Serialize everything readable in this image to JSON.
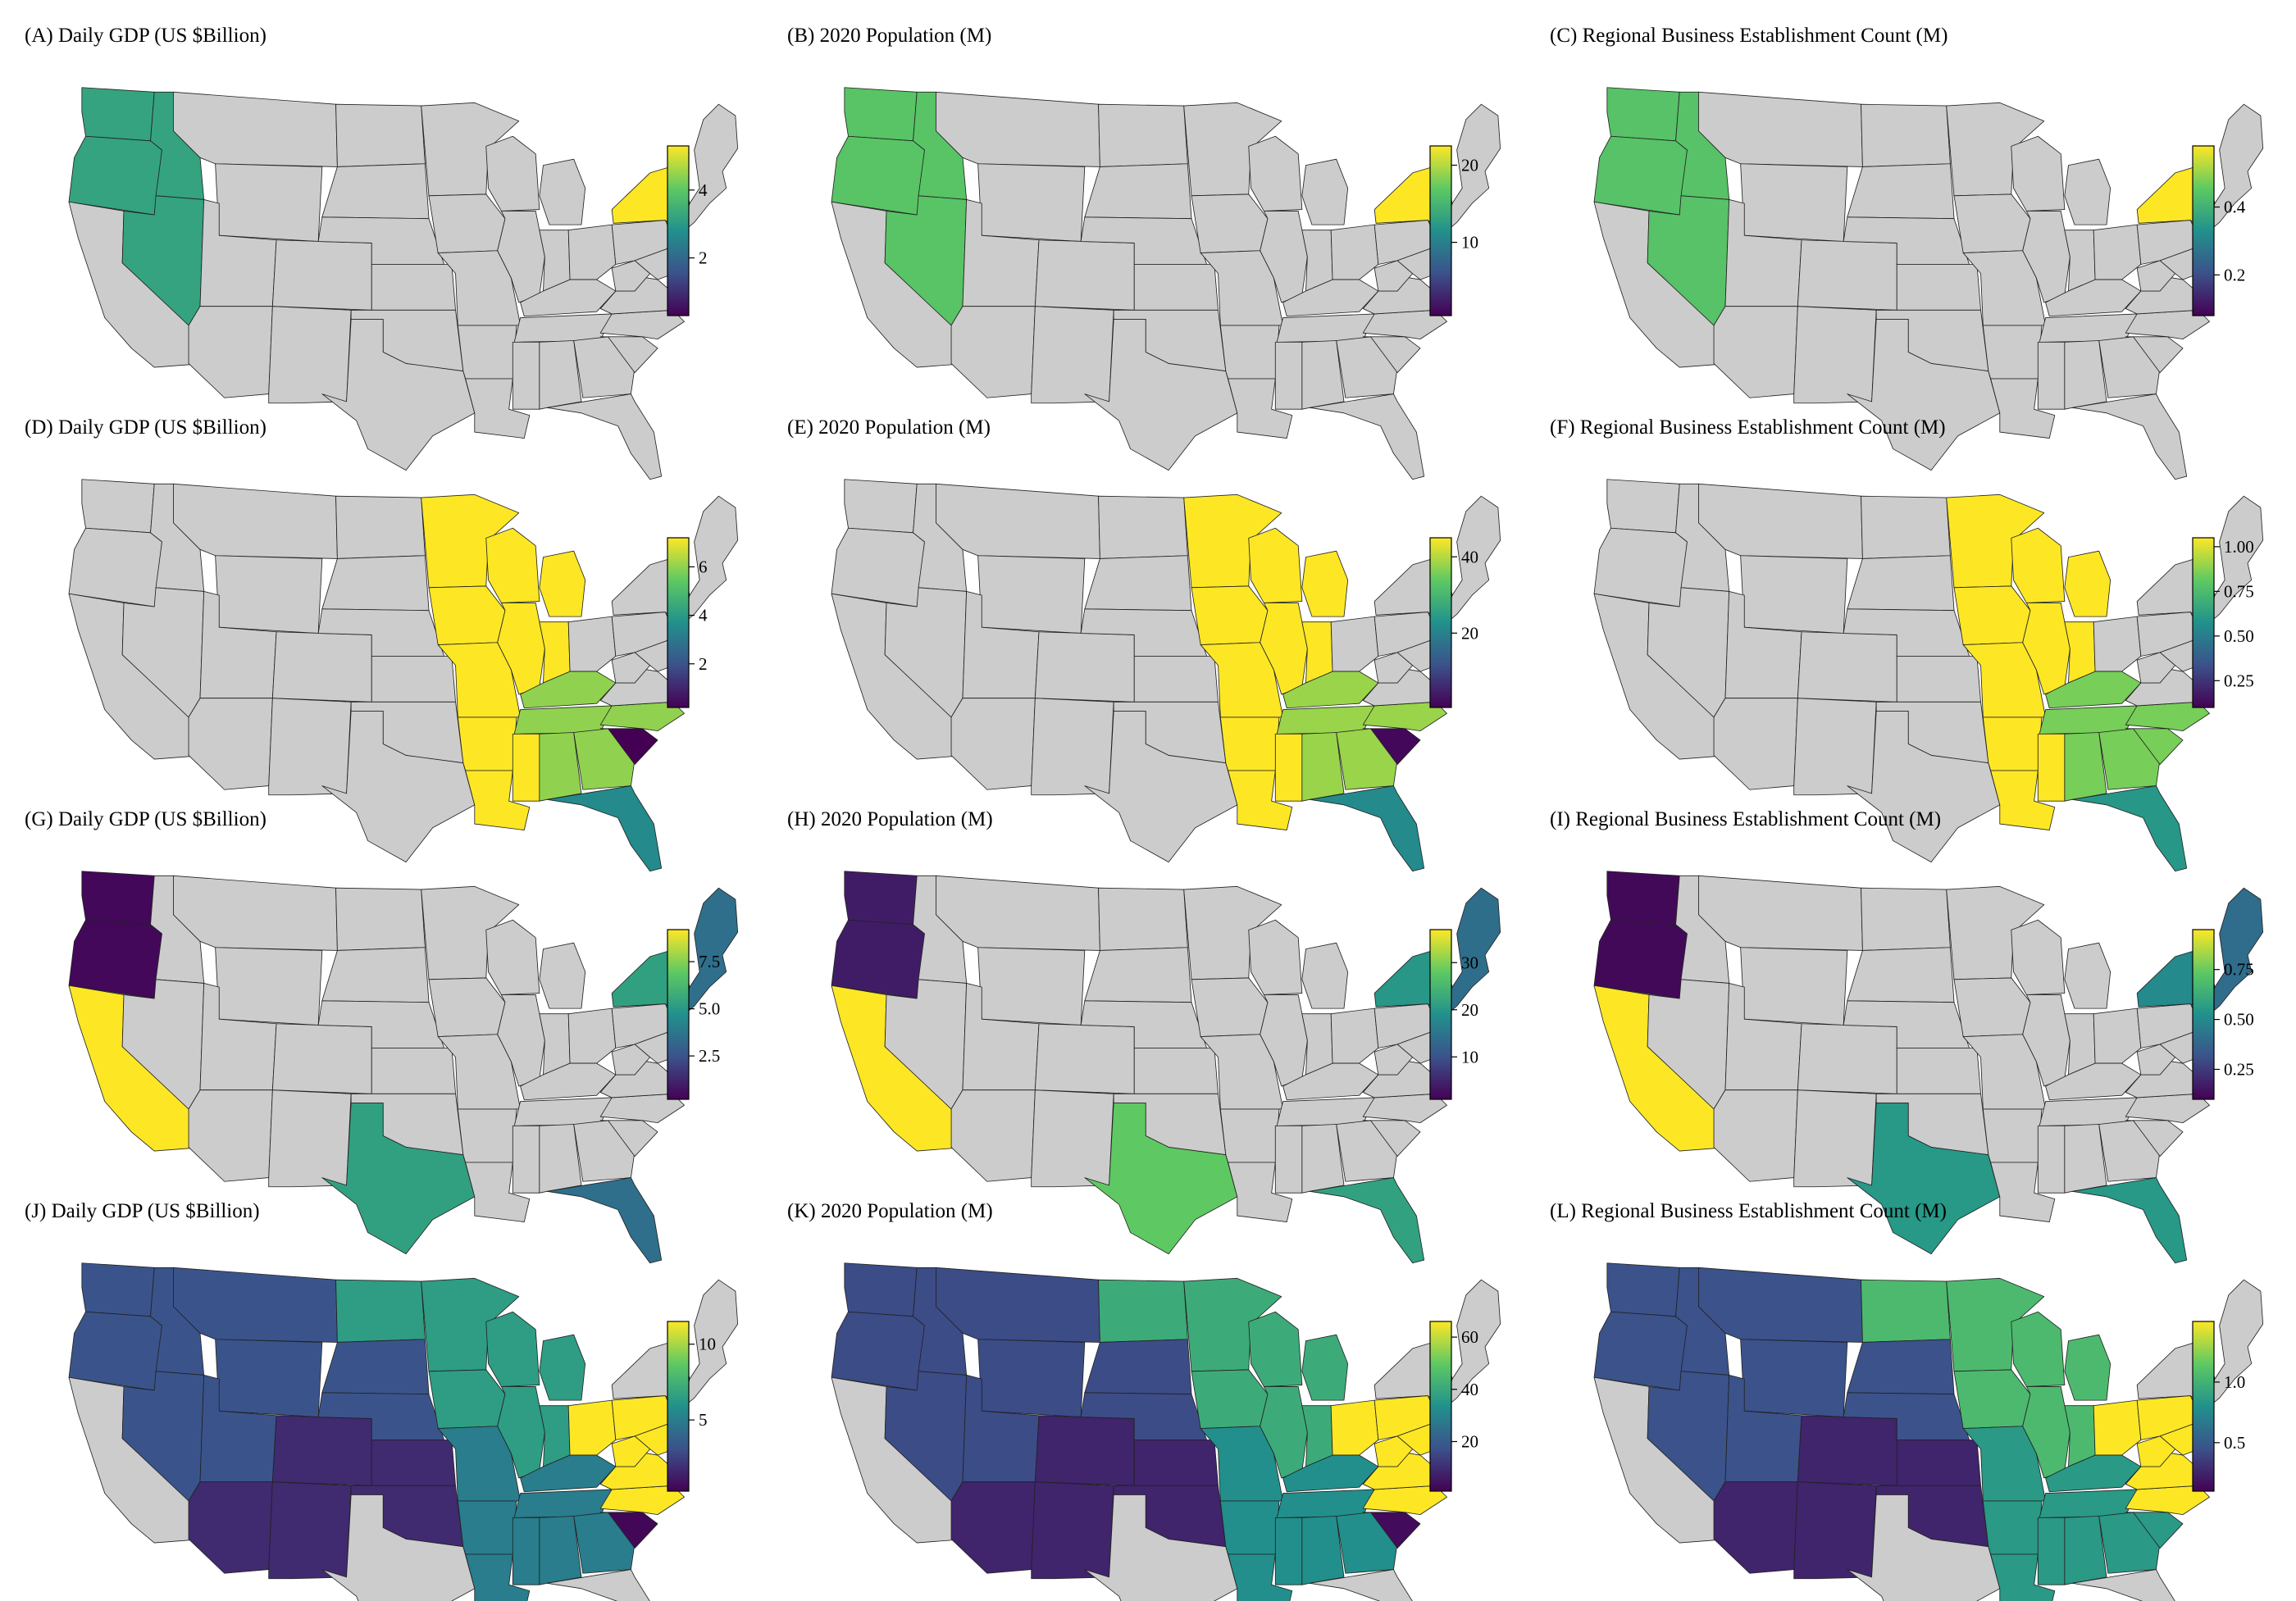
{
  "figure": {
    "colors": {
      "land_gray": "#cccccc",
      "state_border": "#222222",
      "viridis": [
        "#440154",
        "#3b528b",
        "#21918c",
        "#5ec962",
        "#fde725"
      ]
    },
    "panels": [
      {
        "label": "(A)",
        "title": "(A) Daily GDP (US $Billion)",
        "colorbar": {
          "min": 0.3,
          "max": 5.3,
          "ticks": [
            {
              "v": 2,
              "t": "2"
            },
            {
              "v": 4,
              "t": "4"
            }
          ]
        },
        "regions": [
          {
            "name": "northwest",
            "value": 3.2,
            "states": [
              "WA",
              "OR",
              "ID",
              "NV"
            ]
          },
          {
            "name": "new-york",
            "value": 5.3,
            "states": [
              "NY"
            ]
          }
        ]
      },
      {
        "label": "(B)",
        "title": "(B) 2020 Population (M)",
        "colorbar": {
          "min": 0.5,
          "max": 22.5,
          "ticks": [
            {
              "v": 10,
              "t": "10"
            },
            {
              "v": 20,
              "t": "20"
            }
          ]
        },
        "regions": [
          {
            "name": "northwest",
            "value": 16.5,
            "states": [
              "WA",
              "OR",
              "ID",
              "NV"
            ]
          },
          {
            "name": "new-york",
            "value": 22.5,
            "states": [
              "NY"
            ]
          }
        ]
      },
      {
        "label": "(C)",
        "title": "(C) Regional Business Establishment Count (M)",
        "colorbar": {
          "min": 0.08,
          "max": 0.58,
          "ticks": [
            {
              "v": 0.2,
              "t": "0.2"
            },
            {
              "v": 0.4,
              "t": "0.4"
            }
          ]
        },
        "regions": [
          {
            "name": "northwest",
            "value": 0.44,
            "states": [
              "WA",
              "OR",
              "ID",
              "NV"
            ]
          },
          {
            "name": "new-york",
            "value": 0.58,
            "states": [
              "NY"
            ]
          }
        ]
      },
      {
        "label": "(D)",
        "title": "(D) Daily GDP (US $Billion)",
        "colorbar": {
          "min": 0.2,
          "max": 7.2,
          "ticks": [
            {
              "v": 2,
              "t": "2"
            },
            {
              "v": 4,
              "t": "4"
            },
            {
              "v": 6,
              "t": "6"
            }
          ]
        },
        "regions": [
          {
            "name": "upper-midwest",
            "value": 7.2,
            "states": [
              "MN",
              "WI",
              "MI",
              "IA",
              "IL",
              "IN",
              "MO",
              "AR",
              "LA",
              "MS"
            ]
          },
          {
            "name": "southeast",
            "value": 6.0,
            "states": [
              "TN",
              "KY",
              "AL",
              "GA",
              "NC"
            ]
          },
          {
            "name": "south-carolina",
            "value": 0.2,
            "states": [
              "SC"
            ]
          },
          {
            "name": "florida",
            "value": 3.5,
            "states": [
              "FL"
            ]
          }
        ]
      },
      {
        "label": "(E)",
        "title": "(E) 2020 Population (M)",
        "colorbar": {
          "min": 0.5,
          "max": 45,
          "ticks": [
            {
              "v": 20,
              "t": "20"
            },
            {
              "v": 40,
              "t": "40"
            }
          ]
        },
        "regions": [
          {
            "name": "upper-midwest",
            "value": 45,
            "states": [
              "MN",
              "WI",
              "MI",
              "IA",
              "IL",
              "IN",
              "MO",
              "AR",
              "LA",
              "MS"
            ]
          },
          {
            "name": "southeast",
            "value": 38,
            "states": [
              "TN",
              "KY",
              "AL",
              "GA",
              "NC"
            ]
          },
          {
            "name": "south-carolina",
            "value": 1.5,
            "states": [
              "SC"
            ]
          },
          {
            "name": "florida",
            "value": 21.5,
            "states": [
              "FL"
            ]
          }
        ]
      },
      {
        "label": "(F)",
        "title": "(F) Regional Business Establishment Count (M)",
        "colorbar": {
          "min": 0.1,
          "max": 1.05,
          "ticks": [
            {
              "v": 0.25,
              "t": "0.25"
            },
            {
              "v": 0.5,
              "t": "0.50"
            },
            {
              "v": 0.75,
              "t": "0.75"
            },
            {
              "v": 1.0,
              "t": "1.00"
            }
          ]
        },
        "regions": [
          {
            "name": "upper-midwest",
            "value": 1.05,
            "states": [
              "MN",
              "WI",
              "MI",
              "IA",
              "IL",
              "IN",
              "MO",
              "AR",
              "LA",
              "MS"
            ]
          },
          {
            "name": "southeast",
            "value": 0.85,
            "states": [
              "TN",
              "KY",
              "AL",
              "GA",
              "NC",
              "SC"
            ]
          },
          {
            "name": "florida",
            "value": 0.6,
            "states": [
              "FL"
            ]
          }
        ]
      },
      {
        "label": "(G)",
        "title": "(G) Daily GDP (US $Billion)",
        "colorbar": {
          "min": 0.2,
          "max": 9.2,
          "ticks": [
            {
              "v": 2.5,
              "t": "2.5"
            },
            {
              "v": 5.0,
              "t": "5.0"
            },
            {
              "v": 7.5,
              "t": "7.5"
            }
          ]
        },
        "regions": [
          {
            "name": "pacific-northwest",
            "value": 0.4,
            "states": [
              "WA",
              "OR"
            ]
          },
          {
            "name": "california",
            "value": 9.2,
            "states": [
              "CA"
            ]
          },
          {
            "name": "texas",
            "value": 5.3,
            "states": [
              "TX"
            ]
          },
          {
            "name": "florida",
            "value": 3.5,
            "states": [
              "FL"
            ]
          },
          {
            "name": "new-york",
            "value": 5.3,
            "states": [
              "NY"
            ]
          },
          {
            "name": "new-england",
            "value": 3.5,
            "states": [
              "NE-ENG"
            ]
          }
        ]
      },
      {
        "label": "(H)",
        "title": "(H) 2020 Population (M)",
        "colorbar": {
          "min": 1,
          "max": 37,
          "ticks": [
            {
              "v": 10,
              "t": "10"
            },
            {
              "v": 20,
              "t": "20"
            },
            {
              "v": 30,
              "t": "30"
            }
          ]
        },
        "regions": [
          {
            "name": "pacific-northwest",
            "value": 4,
            "states": [
              "WA",
              "OR"
            ]
          },
          {
            "name": "california",
            "value": 37,
            "states": [
              "CA"
            ]
          },
          {
            "name": "texas",
            "value": 28,
            "states": [
              "TX"
            ]
          },
          {
            "name": "florida",
            "value": 21.5,
            "states": [
              "FL"
            ]
          },
          {
            "name": "new-york",
            "value": 20,
            "states": [
              "NY"
            ]
          },
          {
            "name": "new-england",
            "value": 14,
            "states": [
              "NE-ENG"
            ]
          }
        ]
      },
      {
        "label": "(I)",
        "title": "(I) Regional Business Establishment Count (M)",
        "colorbar": {
          "min": 0.1,
          "max": 0.95,
          "ticks": [
            {
              "v": 0.25,
              "t": "0.25"
            },
            {
              "v": 0.5,
              "t": "0.50"
            },
            {
              "v": 0.75,
              "t": "0.75"
            }
          ]
        },
        "regions": [
          {
            "name": "pacific-northwest",
            "value": 0.12,
            "states": [
              "WA",
              "OR"
            ]
          },
          {
            "name": "california",
            "value": 0.95,
            "states": [
              "CA"
            ]
          },
          {
            "name": "texas",
            "value": 0.55,
            "states": [
              "TX"
            ]
          },
          {
            "name": "florida",
            "value": 0.55,
            "states": [
              "FL"
            ]
          },
          {
            "name": "new-york",
            "value": 0.5,
            "states": [
              "NY"
            ]
          },
          {
            "name": "new-england",
            "value": 0.4,
            "states": [
              "NE-ENG"
            ]
          }
        ]
      },
      {
        "label": "(J)",
        "title": "(J) Daily GDP (US $Billion)",
        "colorbar": {
          "min": 0.3,
          "max": 11.5,
          "ticks": [
            {
              "v": 5,
              "t": "5"
            },
            {
              "v": 10,
              "t": "10"
            }
          ]
        },
        "regions": [
          {
            "name": "northwest",
            "value": 3.2,
            "states": [
              "WA",
              "OR",
              "ID",
              "MT",
              "WY",
              "NV",
              "UT",
              "SD",
              "NE"
            ]
          },
          {
            "name": "southwest",
            "value": 1.7,
            "states": [
              "AZ",
              "NM",
              "CO",
              "KS",
              "OK"
            ]
          },
          {
            "name": "north-central",
            "value": 6.5,
            "states": [
              "ND",
              "MN",
              "WI",
              "MI",
              "IA",
              "IL",
              "IN"
            ]
          },
          {
            "name": "south-central",
            "value": 5.0,
            "states": [
              "MO",
              "AR",
              "LA",
              "MS",
              "TN",
              "KY",
              "AL",
              "GA"
            ]
          },
          {
            "name": "south-carolina",
            "value": 0.5,
            "states": [
              "SC"
            ]
          },
          {
            "name": "east-central",
            "value": 11.5,
            "states": [
              "OH",
              "PA",
              "WV",
              "VA",
              "NC",
              "MD"
            ]
          }
        ]
      },
      {
        "label": "(K)",
        "title": "(K) 2020 Population (M)",
        "colorbar": {
          "min": 1,
          "max": 66,
          "ticks": [
            {
              "v": 20,
              "t": "20"
            },
            {
              "v": 40,
              "t": "40"
            },
            {
              "v": 60,
              "t": "60"
            }
          ]
        },
        "regions": [
          {
            "name": "northwest",
            "value": 16,
            "states": [
              "WA",
              "OR",
              "ID",
              "MT",
              "WY",
              "NV",
              "UT",
              "SD",
              "NE"
            ]
          },
          {
            "name": "southwest",
            "value": 8,
            "states": [
              "AZ",
              "NM",
              "CO",
              "KS",
              "OK"
            ]
          },
          {
            "name": "north-central",
            "value": 41,
            "states": [
              "ND",
              "MN",
              "WI",
              "MI",
              "IA",
              "IL",
              "IN"
            ]
          },
          {
            "name": "south-central",
            "value": 33,
            "states": [
              "MO",
              "AR",
              "LA",
              "MS",
              "TN",
              "KY",
              "AL",
              "GA"
            ]
          },
          {
            "name": "south-carolina",
            "value": 3,
            "states": [
              "SC"
            ]
          },
          {
            "name": "east-central",
            "value": 66,
            "states": [
              "OH",
              "PA",
              "WV",
              "VA",
              "NC",
              "MD"
            ]
          }
        ]
      },
      {
        "label": "(L)",
        "title": "(L) Regional Business Establishment Count (M)",
        "colorbar": {
          "min": 0.1,
          "max": 1.5,
          "ticks": [
            {
              "v": 0.5,
              "t": "0.5"
            },
            {
              "v": 1.0,
              "t": "1.0"
            }
          ]
        },
        "regions": [
          {
            "name": "northwest",
            "value": 0.45,
            "states": [
              "WA",
              "OR",
              "ID",
              "MT",
              "WY",
              "NV",
              "UT",
              "SD",
              "NE"
            ]
          },
          {
            "name": "southwest",
            "value": 0.25,
            "states": [
              "AZ",
              "NM",
              "CO",
              "KS",
              "OK"
            ]
          },
          {
            "name": "north-central",
            "value": 1.05,
            "states": [
              "ND",
              "MN",
              "WI",
              "MI",
              "IA",
              "IL",
              "IN"
            ]
          },
          {
            "name": "south-central",
            "value": 0.85,
            "states": [
              "MO",
              "AR",
              "LA",
              "MS",
              "TN",
              "KY",
              "AL",
              "GA",
              "SC"
            ]
          },
          {
            "name": "east-central",
            "value": 1.5,
            "states": [
              "OH",
              "PA",
              "WV",
              "VA",
              "NC",
              "MD"
            ]
          }
        ]
      }
    ]
  }
}
